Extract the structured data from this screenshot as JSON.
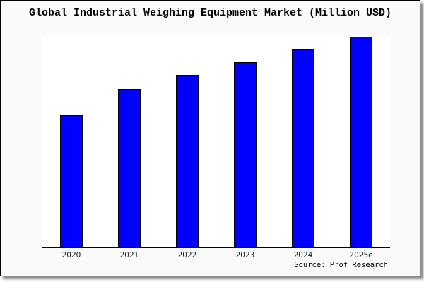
{
  "chart": {
    "title": "Global Industrial Weighing Equipment Market (Million USD)",
    "source": "Source: Prof Research"
  },
  "chart_data": {
    "type": "bar",
    "title": "Global Industrial Weighing Equipment Market (Million USD)",
    "categories": [
      "2020",
      "2021",
      "2022",
      "2023",
      "2024",
      "2025e"
    ],
    "values": [
      188,
      225,
      244,
      263,
      281,
      299
    ],
    "values_note": "no y-axis scale or data labels shown; values are relative bar heights in plot pixels (plot height 300)",
    "xlabel": "",
    "ylabel": "",
    "ylim": [
      0,
      300
    ],
    "grid": false,
    "legend": "none",
    "bar_color": "#0000fe",
    "bar_border_color": "#000000",
    "plot_background": "#ffffff",
    "frame_background": "#fafafa",
    "source": "Source: Prof Research"
  }
}
